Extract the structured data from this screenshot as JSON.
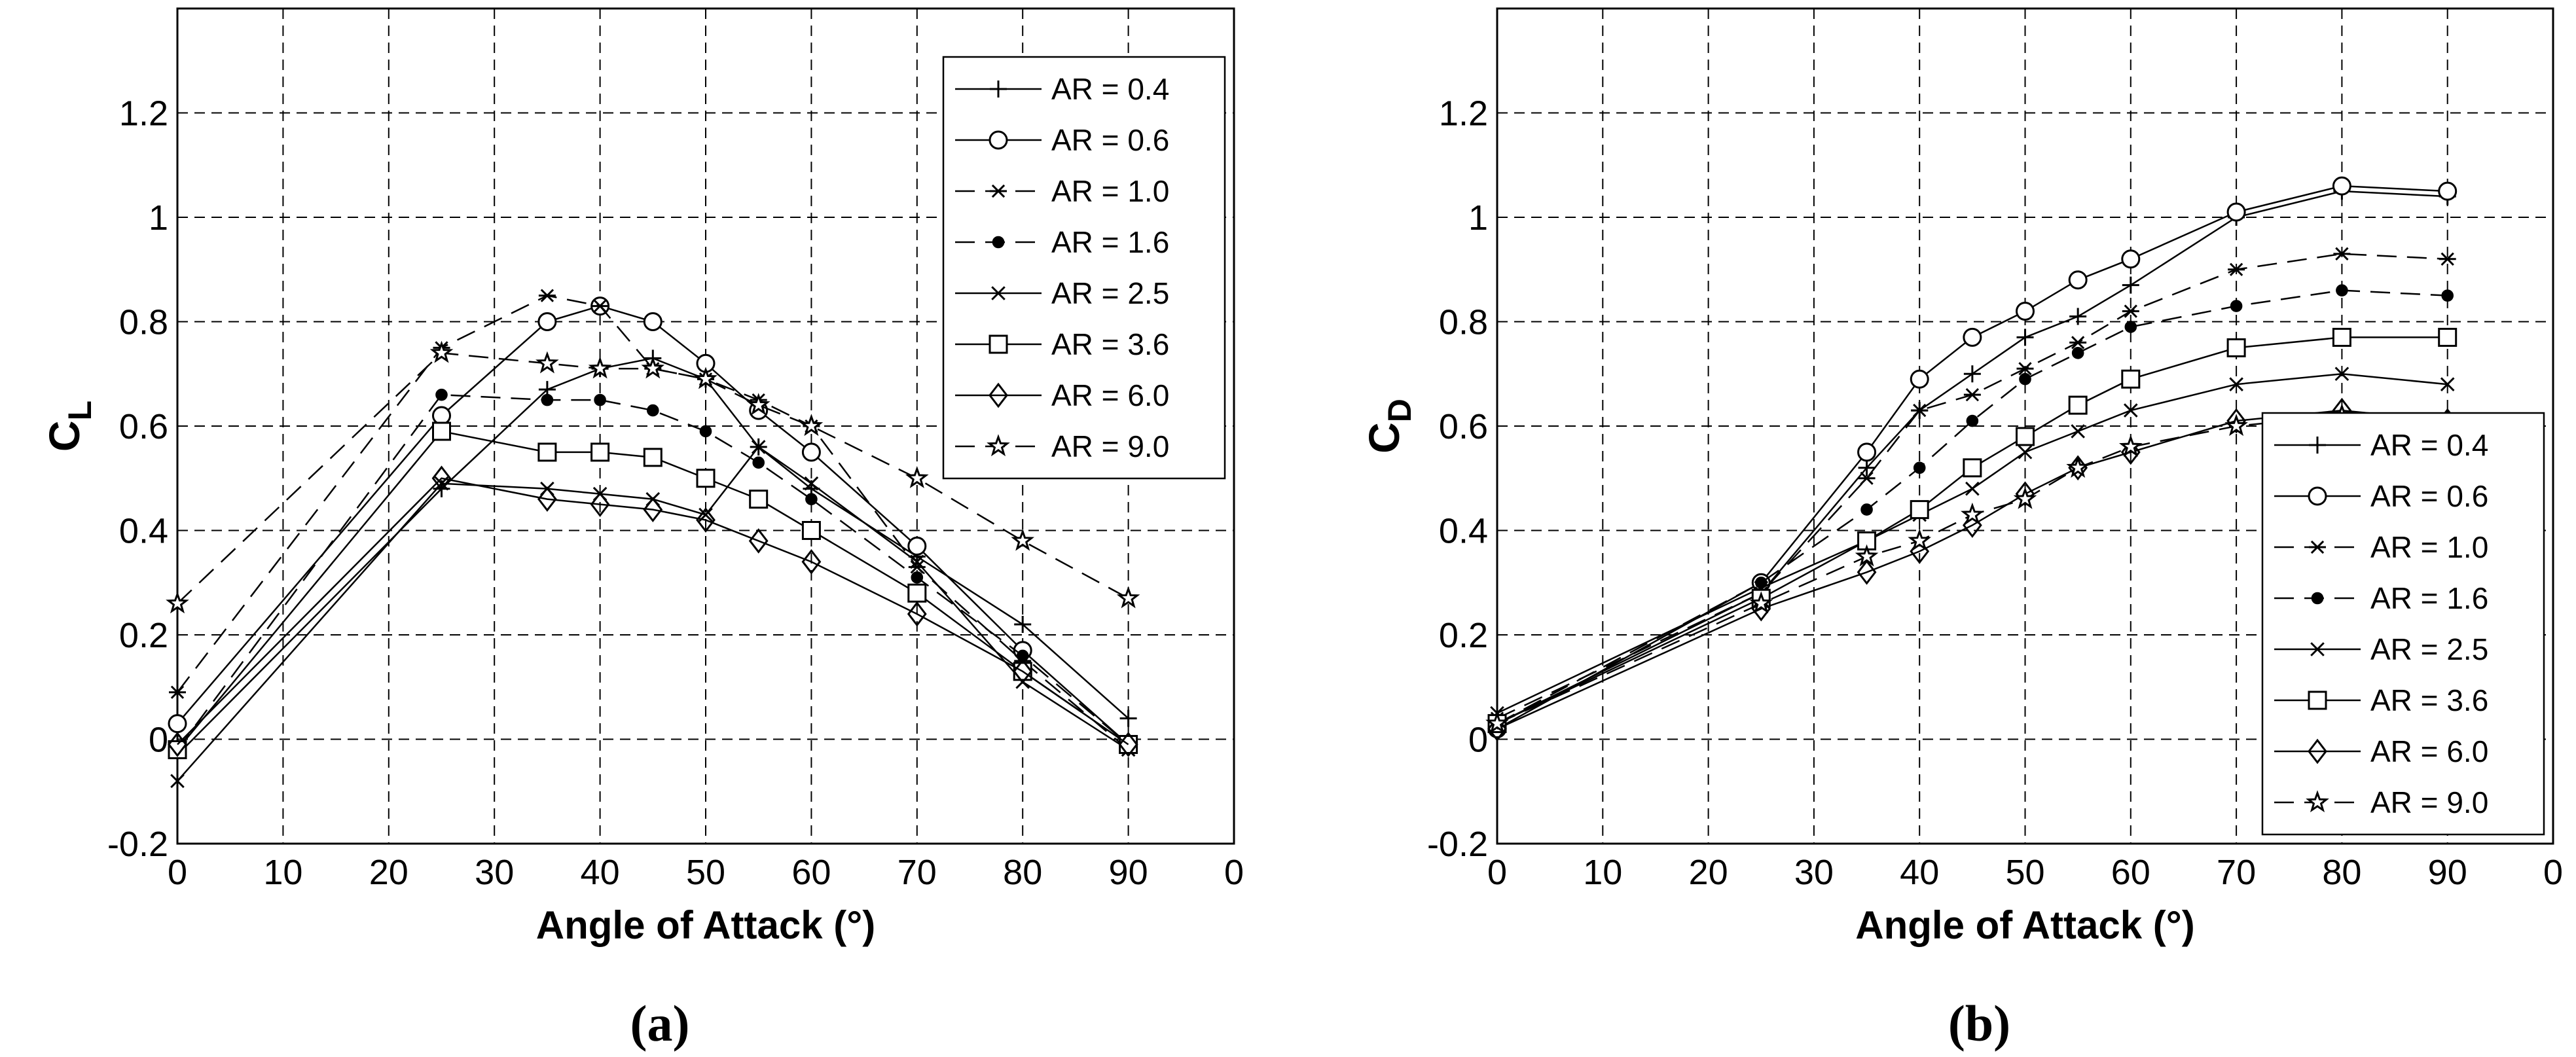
{
  "chart_data": [
    {
      "type": "line",
      "panel_label": "(a)",
      "xlabel": "Angle of Attack (°)",
      "ylabel": {
        "text": "C",
        "subscript": "L"
      },
      "x": [
        0,
        25,
        35,
        40,
        45,
        50,
        55,
        60,
        70,
        80,
        90
      ],
      "xlim": [
        0,
        100
      ],
      "xticks": [
        0,
        10,
        20,
        30,
        40,
        50,
        60,
        70,
        80,
        90,
        {
          "value": 100,
          "label": "0"
        }
      ],
      "ylim": [
        -0.2,
        1.4
      ],
      "yticks": [
        -0.2,
        0,
        0.2,
        0.4,
        0.6,
        0.8,
        1,
        1.2
      ],
      "grid": true,
      "legend": "upper right",
      "series": [
        {
          "name": "AR = 0.4",
          "color": "#000000",
          "marker": "plus",
          "dash": "solid",
          "values": [
            -0.03,
            0.48,
            0.67,
            0.71,
            0.73,
            0.69,
            0.56,
            0.48,
            0.35,
            0.22,
            0.04
          ]
        },
        {
          "name": "AR = 0.6",
          "color": "#000000",
          "marker": "circle",
          "dash": "solid",
          "values": [
            0.03,
            0.62,
            0.8,
            0.83,
            0.8,
            0.72,
            0.63,
            0.55,
            0.37,
            0.17,
            -0.01
          ]
        },
        {
          "name": "AR = 1.0",
          "color": "#000000",
          "marker": "asterisk",
          "dash": "dashed",
          "values": [
            0.09,
            0.75,
            0.85,
            0.83,
            0.71,
            0.69,
            0.65,
            0.6,
            0.33,
            0.15,
            -0.02
          ]
        },
        {
          "name": "AR = 1.6",
          "color": "#000000",
          "marker": "dot",
          "dash": "dashed",
          "values": [
            -0.02,
            0.66,
            0.65,
            0.65,
            0.63,
            0.59,
            0.53,
            0.46,
            0.31,
            0.16,
            -0.01
          ]
        },
        {
          "name": "AR = 2.5",
          "color": "#000000",
          "marker": "cross",
          "dash": "solid",
          "values": [
            -0.08,
            0.49,
            0.48,
            0.47,
            0.46,
            0.43,
            0.56,
            0.49,
            0.34,
            0.11,
            -0.02
          ]
        },
        {
          "name": "AR = 3.6",
          "color": "#000000",
          "marker": "square",
          "dash": "solid",
          "values": [
            -0.02,
            0.59,
            0.55,
            0.55,
            0.54,
            0.5,
            0.46,
            0.4,
            0.28,
            0.13,
            -0.01
          ]
        },
        {
          "name": "AR = 6.0",
          "color": "#000000",
          "marker": "diamond",
          "dash": "solid",
          "values": [
            -0.01,
            0.5,
            0.46,
            0.45,
            0.44,
            0.42,
            0.38,
            0.34,
            0.24,
            0.13,
            -0.01
          ]
        },
        {
          "name": "AR = 9.0",
          "color": "#000000",
          "marker": "star",
          "dash": "dashed",
          "values": [
            0.26,
            0.74,
            0.72,
            0.71,
            0.71,
            0.69,
            0.64,
            0.6,
            0.5,
            0.38,
            0.27
          ]
        }
      ]
    },
    {
      "type": "line",
      "panel_label": "(b)",
      "xlabel": "Angle of Attack (°)",
      "ylabel": {
        "text": "C",
        "subscript": "D"
      },
      "x": [
        0,
        25,
        35,
        40,
        45,
        50,
        55,
        60,
        70,
        80,
        90
      ],
      "xlim": [
        0,
        100
      ],
      "xticks": [
        0,
        10,
        20,
        30,
        40,
        50,
        60,
        70,
        80,
        90,
        {
          "value": 100,
          "label": "0"
        }
      ],
      "ylim": [
        -0.2,
        1.4
      ],
      "yticks": [
        -0.2,
        0,
        0.2,
        0.4,
        0.6,
        0.8,
        1,
        1.2
      ],
      "grid": true,
      "legend": "lower right",
      "series": [
        {
          "name": "AR = 0.4",
          "color": "#000000",
          "marker": "plus",
          "dash": "solid",
          "values": [
            0.03,
            0.28,
            0.52,
            0.63,
            0.7,
            0.77,
            0.81,
            0.87,
            1.0,
            1.05,
            1.04
          ]
        },
        {
          "name": "AR = 0.6",
          "color": "#000000",
          "marker": "circle",
          "dash": "solid",
          "values": [
            0.02,
            0.3,
            0.55,
            0.69,
            0.77,
            0.82,
            0.88,
            0.92,
            1.01,
            1.06,
            1.05
          ]
        },
        {
          "name": "AR = 1.0",
          "color": "#000000",
          "marker": "asterisk",
          "dash": "dashed",
          "values": [
            0.04,
            0.28,
            0.5,
            0.63,
            0.66,
            0.71,
            0.76,
            0.82,
            0.9,
            0.93,
            0.92
          ]
        },
        {
          "name": "AR = 1.6",
          "color": "#000000",
          "marker": "dot",
          "dash": "dashed",
          "values": [
            0.03,
            0.3,
            0.44,
            0.52,
            0.61,
            0.69,
            0.74,
            0.79,
            0.83,
            0.86,
            0.85
          ]
        },
        {
          "name": "AR = 2.5",
          "color": "#000000",
          "marker": "cross",
          "dash": "solid",
          "values": [
            0.05,
            0.29,
            0.38,
            0.43,
            0.48,
            0.55,
            0.59,
            0.63,
            0.68,
            0.7,
            0.68
          ]
        },
        {
          "name": "AR = 3.6",
          "color": "#000000",
          "marker": "square",
          "dash": "solid",
          "values": [
            0.03,
            0.27,
            0.38,
            0.44,
            0.52,
            0.58,
            0.64,
            0.69,
            0.75,
            0.77,
            0.77
          ]
        },
        {
          "name": "AR = 6.0",
          "color": "#000000",
          "marker": "diamond",
          "dash": "solid",
          "values": [
            0.02,
            0.25,
            0.32,
            0.36,
            0.41,
            0.47,
            0.52,
            0.55,
            0.61,
            0.63,
            0.61
          ]
        },
        {
          "name": "AR = 9.0",
          "color": "#000000",
          "marker": "star",
          "dash": "dashed",
          "values": [
            0.03,
            0.26,
            0.35,
            0.38,
            0.43,
            0.46,
            0.52,
            0.56,
            0.6,
            0.62,
            0.61
          ]
        }
      ]
    }
  ]
}
